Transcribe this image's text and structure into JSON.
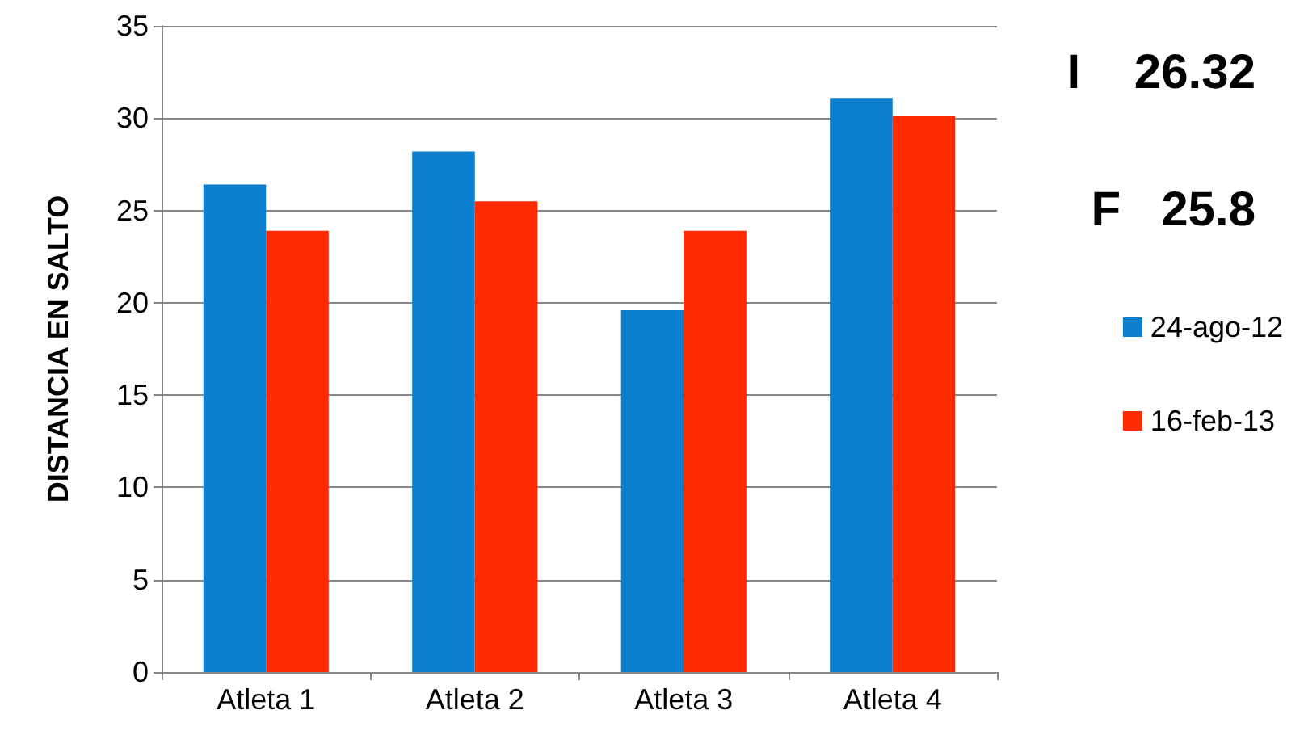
{
  "chart_data": {
    "type": "bar",
    "ylabel": "DISTANCIA EN SALTO",
    "categories": [
      "Atleta 1",
      "Atleta 2",
      "Atleta 3",
      "Atleta 4"
    ],
    "series": [
      {
        "name": "24-ago-12",
        "color": "#0a7fcf",
        "values": [
          26.4,
          28.2,
          19.6,
          31.1
        ]
      },
      {
        "name": "16-feb-13",
        "color": "#ff2a00",
        "values": [
          23.9,
          25.5,
          23.9,
          30.1
        ]
      }
    ],
    "ylim": [
      0,
      35
    ],
    "yticks": [
      0,
      5,
      10,
      15,
      20,
      25,
      30,
      35
    ],
    "grid": "y",
    "legend": "right",
    "annotations": [
      "I    26.32",
      "F   25.8"
    ]
  }
}
